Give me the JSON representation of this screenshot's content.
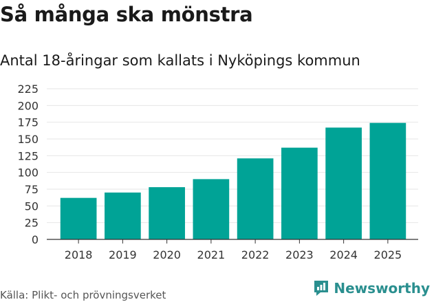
{
  "header": {
    "title": "Så många ska mönstra",
    "subtitle": "Antal 18-åringar som kallats i Nyköpings kommun"
  },
  "footer": {
    "source": "Källa: Plikt- och prövningsverket",
    "brand": "Newsworthy",
    "brand_icon": "newsworthy-logo-icon"
  },
  "colors": {
    "bar": "#00a396",
    "grid": "#e6e6e6",
    "axis": "#333333",
    "brand": "#2a8f8f"
  },
  "chart_data": {
    "type": "bar",
    "title": "Så många ska mönstra",
    "subtitle": "Antal 18-åringar som kallats i Nyköpings kommun",
    "categories": [
      "2018",
      "2019",
      "2020",
      "2021",
      "2022",
      "2023",
      "2024",
      "2025"
    ],
    "values": [
      62,
      70,
      78,
      90,
      121,
      137,
      167,
      174
    ],
    "xlabel": "",
    "ylabel": "",
    "ylim": [
      0,
      225
    ],
    "yticks": [
      0,
      25,
      50,
      75,
      100,
      125,
      150,
      175,
      200,
      225
    ],
    "grid": true,
    "legend": "none"
  }
}
